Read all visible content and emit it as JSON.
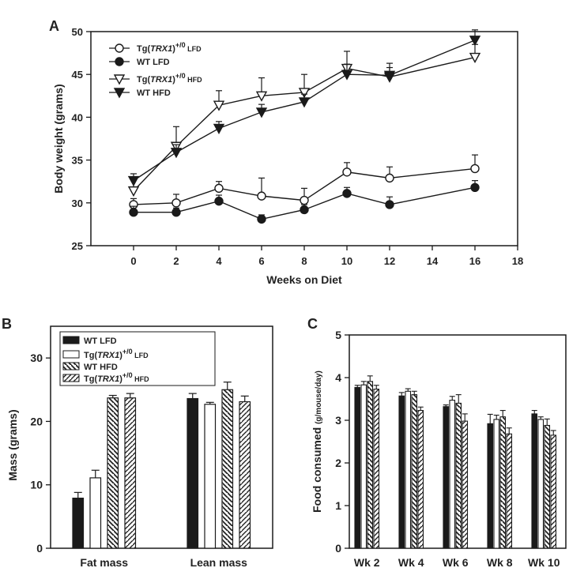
{
  "colors": {
    "ink": "#1a1a1a",
    "background": "#ffffff"
  },
  "chart_data": [
    {
      "panel": "A",
      "type": "line",
      "xlabel": "Weeks on Diet",
      "ylabel": "Body weight (grams)",
      "xlim": [
        -2,
        18
      ],
      "ylim": [
        25,
        50
      ],
      "xticks": [
        0,
        2,
        4,
        6,
        8,
        10,
        12,
        14,
        16,
        18
      ],
      "yticks": [
        25,
        30,
        35,
        40,
        45,
        50
      ],
      "legend_position": "top-left",
      "x": [
        0,
        2,
        4,
        6,
        8,
        10,
        12,
        16
      ],
      "series": [
        {
          "name_prefix": "Tg(",
          "name_gene": "TRX1",
          "name_sup": "+/0",
          "name_suffix": " LFD",
          "marker": "circle-open",
          "values": [
            29.8,
            30.0,
            31.7,
            30.8,
            30.3,
            33.6,
            32.9,
            34.0
          ],
          "errors": [
            0.7,
            1.0,
            0.8,
            2.1,
            1.4,
            1.1,
            1.3,
            1.6
          ]
        },
        {
          "name_prefix": "WT LFD",
          "name_gene": "",
          "name_sup": "",
          "name_suffix": "",
          "marker": "circle-filled",
          "values": [
            28.9,
            28.9,
            30.2,
            28.1,
            29.2,
            31.1,
            29.8,
            31.8
          ],
          "errors": [
            0.7,
            0.5,
            0.7,
            0.5,
            0.6,
            0.7,
            0.9,
            0.8
          ]
        },
        {
          "name_prefix": "Tg(",
          "name_gene": "TRX1",
          "name_sup": "+/0",
          "name_suffix": " HFD",
          "marker": "triangle-down-open",
          "values": [
            31.4,
            36.6,
            41.4,
            42.5,
            42.9,
            45.7,
            44.7,
            47.0
          ],
          "errors": [
            1.3,
            2.3,
            1.7,
            2.1,
            2.1,
            2.0,
            1.6,
            1.5
          ]
        },
        {
          "name_prefix": "WT HFD",
          "name_gene": "",
          "name_sup": "",
          "name_suffix": "",
          "marker": "triangle-down-filled",
          "values": [
            32.6,
            35.9,
            38.7,
            40.6,
            41.8,
            45.0,
            44.9,
            49.0
          ],
          "errors": [
            0.8,
            0.9,
            0.8,
            0.9,
            0.9,
            1.2,
            0.9,
            1.2
          ]
        }
      ]
    },
    {
      "panel": "B",
      "type": "bar",
      "ylabel": "Mass (grams)",
      "ylim": [
        0,
        35
      ],
      "yticks": [
        0,
        10,
        20,
        30
      ],
      "categories": [
        "Fat mass",
        "Lean mass"
      ],
      "legend_position": "top-left",
      "series": [
        {
          "name_prefix": "WT LFD",
          "name_gene": "",
          "name_sup": "",
          "name_suffix": "",
          "fill": "solid",
          "values": [
            7.9,
            23.6
          ],
          "errors": [
            0.9,
            0.8
          ]
        },
        {
          "name_prefix": "Tg(",
          "name_gene": "TRX1",
          "name_sup": "+/0",
          "name_suffix": " LFD",
          "fill": "open",
          "values": [
            11.1,
            22.7
          ],
          "errors": [
            1.2,
            0.3
          ]
        },
        {
          "name_prefix": "WT HFD",
          "name_gene": "",
          "name_sup": "",
          "name_suffix": "",
          "fill": "hatch-back",
          "values": [
            23.7,
            25.0
          ],
          "errors": [
            0.4,
            1.2
          ]
        },
        {
          "name_prefix": "Tg(",
          "name_gene": "TRX1",
          "name_sup": "+/0",
          "name_suffix": " HFD",
          "fill": "hatch-fwd",
          "values": [
            23.7,
            23.1
          ],
          "errors": [
            0.7,
            0.9
          ]
        }
      ]
    },
    {
      "panel": "C",
      "type": "bar",
      "ylabel": "Food consumed",
      "ylabel_unit": "(g/mouse/day)",
      "ylim": [
        0,
        5
      ],
      "yticks": [
        0,
        1,
        2,
        3,
        4,
        5
      ],
      "categories": [
        "Wk 2",
        "Wk 4",
        "Wk 6",
        "Wk 8",
        "Wk 10"
      ],
      "series": [
        {
          "name": "WT LFD",
          "fill": "solid",
          "values": [
            3.77,
            3.57,
            3.32,
            2.92,
            3.15
          ],
          "errors": [
            0.05,
            0.08,
            0.04,
            0.22,
            0.08
          ]
        },
        {
          "name": "Tg(TRX1)+/0 LFD",
          "fill": "open",
          "values": [
            3.83,
            3.68,
            3.47,
            3.02,
            3.02
          ],
          "errors": [
            0.08,
            0.06,
            0.09,
            0.1,
            0.06
          ]
        },
        {
          "name": "WT HFD",
          "fill": "hatch-back",
          "values": [
            3.91,
            3.6,
            3.4,
            3.08,
            2.88
          ],
          "errors": [
            0.13,
            0.08,
            0.2,
            0.15,
            0.15
          ]
        },
        {
          "name": "Tg(TRX1)+/0 HFD",
          "fill": "hatch-fwd",
          "values": [
            3.73,
            3.23,
            2.98,
            2.68,
            2.65
          ],
          "errors": [
            0.09,
            0.08,
            0.17,
            0.14,
            0.11
          ]
        }
      ]
    }
  ]
}
